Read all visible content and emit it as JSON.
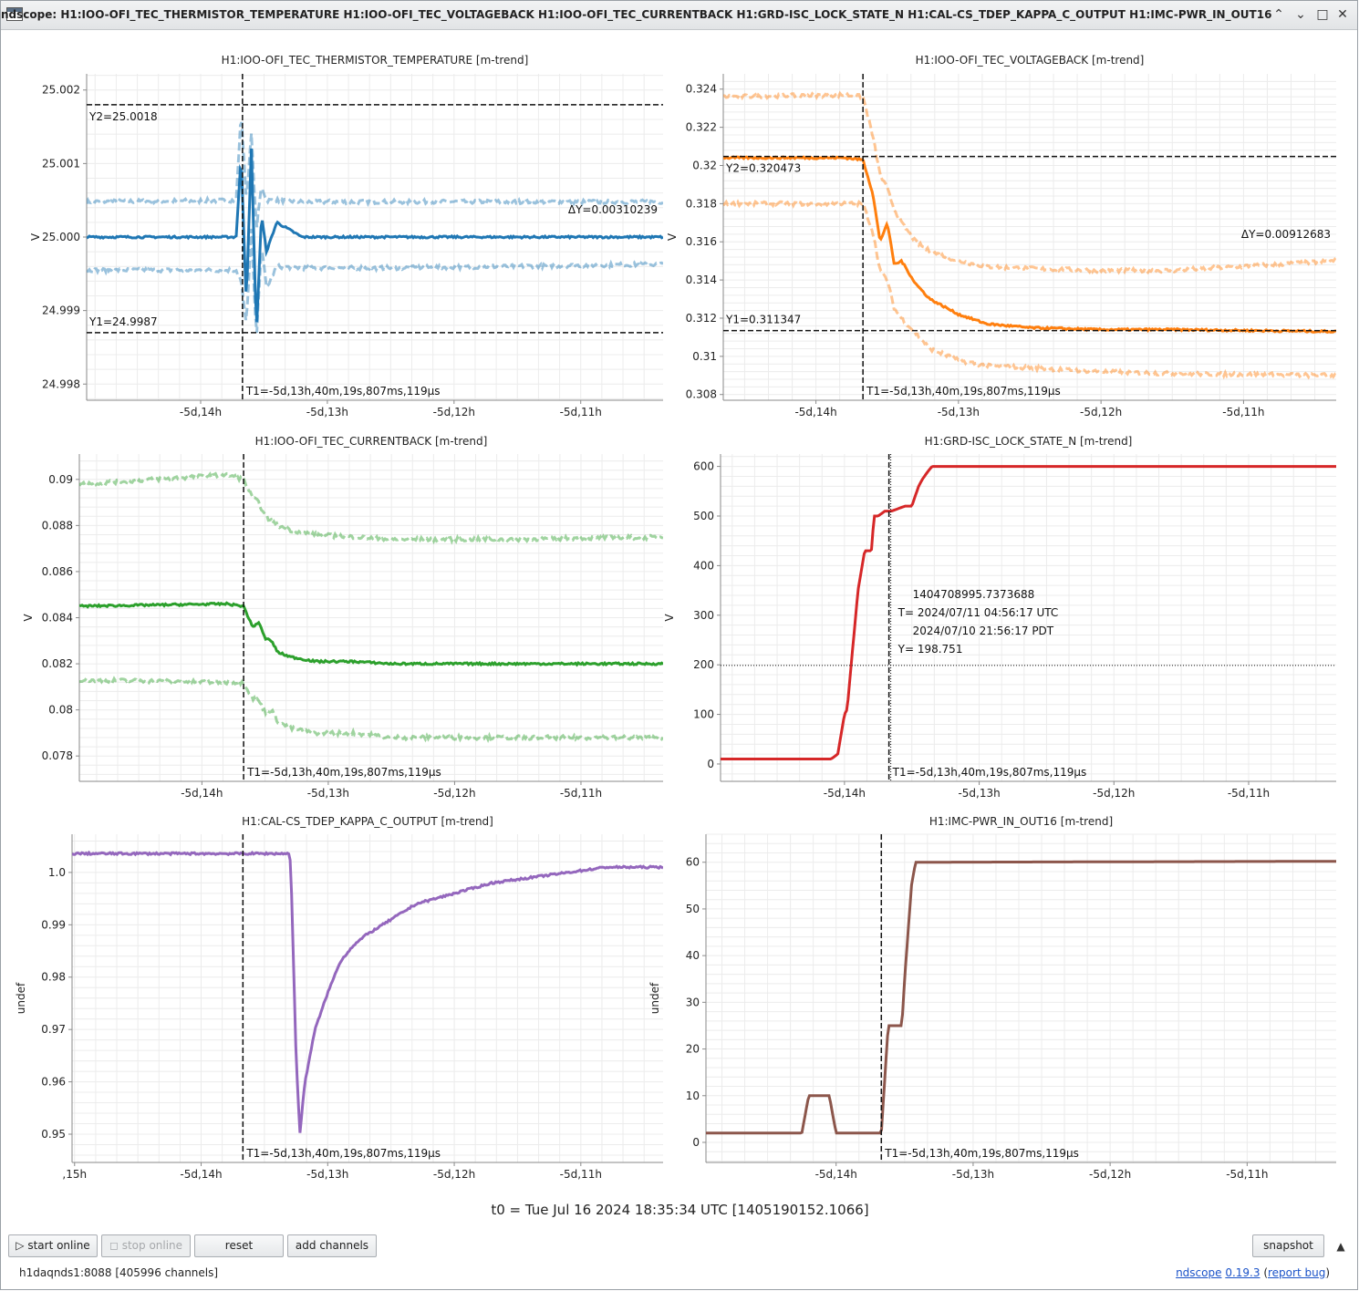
{
  "window": {
    "title": "ndscope: H1:IOO-OFI_TEC_THERMISTOR_TEMPERATURE H1:IOO-OFI_TEC_VOLTAGEBACK H1:IOO-OFI_TEC_CURRENTBACK H1:GRD-ISC_LOCK_STATE_N H1:CAL-CS_TDEP_KAPPA_C_OUTPUT H1:IMC-PWR_IN_OUT16",
    "minimize": "⌃",
    "restore": "⌄",
    "maximize": "□",
    "close": "✕"
  },
  "t0_label": "t0 = Tue Jul 16 2024 18:35:34 UTC [1405190152.1066]",
  "toolbar": {
    "start_online": "▷ start online",
    "stop_online": "◻ stop online",
    "reset": "reset",
    "add_channels": "add channels",
    "snapshot": "snapshot",
    "collapse": "▲"
  },
  "status": {
    "server": "h1daqnds1:8088  [405996 channels]",
    "app_name": "ndscope",
    "version": "0.19.3",
    "report_bug": "report bug"
  },
  "colors": {
    "temperature": "#1f77b4",
    "voltage": "#ff7f0e",
    "current": "#2ca02c",
    "lock_state": "#d62728",
    "kappa": "#9467bd",
    "pwr": "#8c564b"
  },
  "chart_data": [
    {
      "type": "line",
      "title": "H1:IOO-OFI_TEC_THERMISTOR_TEMPERATURE [m-trend]",
      "ylabel": "V",
      "x_ticks": [
        "-5d,14h",
        "-5d,13h",
        "-5d,12h",
        "-5d,11h"
      ],
      "x_range_h": [
        -14.9,
        -10.35
      ],
      "y_ticks": [
        "25.002",
        "25.001",
        "25.000",
        "24.999",
        "24.998"
      ],
      "y_tick_values": [
        25.002,
        25.001,
        25.0,
        24.999,
        24.998
      ],
      "ylim": [
        24.99778,
        25.00222
      ],
      "color": "#1f77b4",
      "series": [
        {
          "x": [
            -14.9,
            -13.72,
            -13.68,
            -13.64,
            -13.6,
            -13.56,
            -13.52,
            -13.48,
            -13.4,
            -13.2,
            -12.5,
            -10.35
          ],
          "mean": [
            25.0,
            25.0,
            25.0011,
            24.9991,
            25.0012,
            24.9987,
            25.0003,
            24.9998,
            25.0002,
            25.0,
            25.0,
            25.0
          ],
          "max": [
            25.00048,
            25.0005,
            25.0017,
            25.0005,
            25.0014,
            25.0001,
            25.0007,
            25.0005,
            25.0005,
            25.00048,
            25.00048,
            25.00048
          ],
          "min": [
            24.99955,
            24.99955,
            24.9994,
            24.9988,
            25.0001,
            24.9986,
            24.9999,
            24.9993,
            24.9996,
            24.99958,
            24.99958,
            24.99963
          ]
        }
      ],
      "cursors": {
        "t1": "T1=-5d,13h,40m,19s,807ms,119µs",
        "t1_x": -13.67,
        "y1": "Y1=24.9987",
        "y1_v": 24.9987,
        "y2": "Y2=25.0018",
        "y2_v": 25.0018,
        "dy": "ΔY=0.00310239"
      }
    },
    {
      "type": "line",
      "title": "H1:IOO-OFI_TEC_VOLTAGEBACK [m-trend]",
      "ylabel": "V",
      "x_ticks": [
        "-5d,14h",
        "-5d,13h",
        "-5d,12h",
        "-5d,11h"
      ],
      "x_range_h": [
        -14.65,
        -10.35
      ],
      "y_ticks": [
        "0.324",
        "0.322",
        "0.32",
        "0.318",
        "0.316",
        "0.314",
        "0.312",
        "0.31",
        "0.308"
      ],
      "y_tick_values": [
        0.324,
        0.322,
        0.32,
        0.318,
        0.316,
        0.314,
        0.312,
        0.31,
        0.308
      ],
      "ylim": [
        0.3077,
        0.3248
      ],
      "color": "#ff7f0e",
      "series": [
        {
          "x": [
            -14.65,
            -13.8,
            -13.67,
            -13.6,
            -13.55,
            -13.5,
            -13.45,
            -13.4,
            -13.3,
            -13.2,
            -13.0,
            -12.8,
            -12.5,
            -12.0,
            -11.5,
            -10.35
          ],
          "mean": [
            0.3204,
            0.3204,
            0.3203,
            0.3185,
            0.316,
            0.317,
            0.3148,
            0.315,
            0.3138,
            0.313,
            0.3122,
            0.3117,
            0.3115,
            0.3114,
            0.3114,
            0.3113
          ],
          "max": [
            0.3236,
            0.3237,
            0.3236,
            0.3215,
            0.3195,
            0.3188,
            0.3177,
            0.317,
            0.316,
            0.3155,
            0.315,
            0.3147,
            0.3146,
            0.3145,
            0.3145,
            0.315
          ],
          "min": [
            0.318,
            0.318,
            0.318,
            0.3165,
            0.3145,
            0.314,
            0.3125,
            0.312,
            0.3112,
            0.3104,
            0.3098,
            0.3095,
            0.3094,
            0.3092,
            0.3091,
            0.309
          ]
        }
      ],
      "cursors": {
        "t1": "T1=-5d,13h,40m,19s,807ms,119µs",
        "t1_x": -13.67,
        "y1": "Y1=0.311347",
        "y1_v": 0.311347,
        "y2": "Y2=0.320473",
        "y2_v": 0.320473,
        "dy": "ΔY=0.00912683"
      }
    },
    {
      "type": "line",
      "title": "H1:IOO-OFI_TEC_CURRENTBACK [m-trend]",
      "ylabel": "V",
      "x_ticks": [
        "-5d,14h",
        "-5d,13h",
        "-5d,12h",
        "-5d,11h"
      ],
      "x_range_h": [
        -14.97,
        -10.35
      ],
      "y_ticks": [
        "0.09",
        "0.088",
        "0.086",
        "0.084",
        "0.082",
        "0.08",
        "0.078"
      ],
      "y_tick_values": [
        0.09,
        0.088,
        0.086,
        0.084,
        0.082,
        0.08,
        0.078
      ],
      "ylim": [
        0.0769,
        0.0911
      ],
      "color": "#2ca02c",
      "series": [
        {
          "x": [
            -14.97,
            -13.8,
            -13.67,
            -13.6,
            -13.55,
            -13.5,
            -13.45,
            -13.4,
            -13.3,
            -13.1,
            -12.8,
            -12.5,
            -11.5,
            -10.35
          ],
          "mean": [
            0.0845,
            0.0846,
            0.0845,
            0.0836,
            0.0838,
            0.0831,
            0.083,
            0.0825,
            0.0823,
            0.0821,
            0.0821,
            0.082,
            0.082,
            0.082
          ],
          "max": [
            0.0898,
            0.0902,
            0.09,
            0.0892,
            0.089,
            0.0884,
            0.0882,
            0.088,
            0.0878,
            0.0876,
            0.0875,
            0.0874,
            0.0874,
            0.0875
          ],
          "min": [
            0.0813,
            0.0812,
            0.0812,
            0.0805,
            0.0804,
            0.0799,
            0.08,
            0.0795,
            0.0792,
            0.079,
            0.079,
            0.0788,
            0.0788,
            0.0788
          ]
        }
      ],
      "cursors": {
        "t1": "T1=-5d,13h,40m,19s,807ms,119µs",
        "t1_x": -13.67
      }
    },
    {
      "type": "line",
      "title": "H1:GRD-ISC_LOCK_STATE_N [m-trend]",
      "ylabel": "V",
      "x_ticks": [
        "-5d,14h",
        "-5d,13h",
        "-5d,12h",
        "-5d,11h"
      ],
      "x_range_h": [
        -14.92,
        -10.35
      ],
      "y_ticks": [
        "600",
        "500",
        "400",
        "300",
        "200",
        "100",
        "0"
      ],
      "y_tick_values": [
        600,
        500,
        400,
        300,
        200,
        100,
        0
      ],
      "ylim": [
        -35,
        625
      ],
      "color": "#d62728",
      "series": [
        {
          "x": [
            -14.92,
            -14.5,
            -14.1,
            -14.05,
            -14.0,
            -13.98,
            -13.95,
            -13.9,
            -13.85,
            -13.8,
            -13.78,
            -13.75,
            -13.7,
            -13.67,
            -13.65,
            -13.55,
            -13.5,
            -13.45,
            -13.42,
            -13.38,
            -13.35,
            -13.3,
            -10.35
          ],
          "mean": [
            10,
            10,
            10,
            20,
            100,
            110,
            200,
            350,
            430,
            430,
            500,
            500,
            510,
            510,
            510,
            520,
            520,
            560,
            575,
            590,
            600,
            600,
            600
          ]
        }
      ],
      "cursors": {
        "t1": "T1=-5d,13h,40m,19s,807ms,119µs",
        "t1_x": -13.67,
        "crosshair_x": -13.67,
        "crosshair_y": 198.751,
        "readout": [
          "1404708995.7373688",
          "T= 2024/07/11 04:56:17 UTC",
          "2024/07/10 21:56:17 PDT",
          "Y= 198.751"
        ]
      }
    },
    {
      "type": "line",
      "title": "H1:CAL-CS_TDEP_KAPPA_C_OUTPUT [m-trend]",
      "ylabel": "undef",
      "x_ticks": [
        ",15h",
        "-5d,14h",
        "-5d,13h",
        "-5d,12h",
        "-5d,11h"
      ],
      "x_tick_values": [
        -15.0,
        -14.0,
        -13.0,
        -12.0,
        -11.0
      ],
      "x_range_h": [
        -15.02,
        -10.35
      ],
      "y_ticks": [
        "1.0",
        "0.99",
        "0.98",
        "0.97",
        "0.96",
        "0.95"
      ],
      "y_tick_values": [
        1.0,
        0.99,
        0.98,
        0.97,
        0.96,
        0.95
      ],
      "ylim": [
        0.9446,
        1.0073
      ],
      "color": "#9467bd",
      "series": [
        {
          "x": [
            -15.02,
            -13.3,
            -13.29,
            -13.25,
            -13.22,
            -13.18,
            -13.1,
            -13.0,
            -12.9,
            -12.8,
            -12.7,
            -12.5,
            -12.3,
            -12.0,
            -11.7,
            -11.4,
            -11.1,
            -10.8,
            -10.35
          ],
          "mean": [
            1.0036,
            1.0036,
            1.0,
            0.965,
            0.95,
            0.96,
            0.97,
            0.977,
            0.983,
            0.986,
            0.988,
            0.991,
            0.994,
            0.996,
            0.998,
            0.999,
            1.0,
            1.001,
            1.001
          ]
        }
      ],
      "cursors": {
        "t1": "T1=-5d,13h,40m,19s,807ms,119µs",
        "t1_x": -13.67
      }
    },
    {
      "type": "line",
      "title": "H1:IMC-PWR_IN_OUT16 [m-trend]",
      "ylabel": "undef",
      "x_ticks": [
        "-5d,14h",
        "-5d,13h",
        "-5d,12h",
        "-5d,11h"
      ],
      "x_range_h": [
        -14.95,
        -10.35
      ],
      "y_ticks": [
        "60",
        "50",
        "40",
        "30",
        "20",
        "10",
        "0"
      ],
      "y_tick_values": [
        60,
        50,
        40,
        30,
        20,
        10,
        0
      ],
      "ylim": [
        -4.3,
        66
      ],
      "color": "#8c564b",
      "series": [
        {
          "x": [
            -14.95,
            -14.25,
            -14.2,
            -14.05,
            -14.0,
            -13.72,
            -13.67,
            -13.62,
            -13.52,
            -13.5,
            -13.45,
            -13.42,
            -13.38,
            -10.35
          ],
          "mean": [
            2,
            2,
            10,
            10,
            2,
            2,
            2,
            25,
            25,
            35,
            55,
            60,
            60,
            60.2
          ]
        }
      ],
      "cursors": {
        "t1": "T1=-5d,13h,40m,19s,807ms,119µs",
        "t1_x": -13.67
      }
    }
  ]
}
